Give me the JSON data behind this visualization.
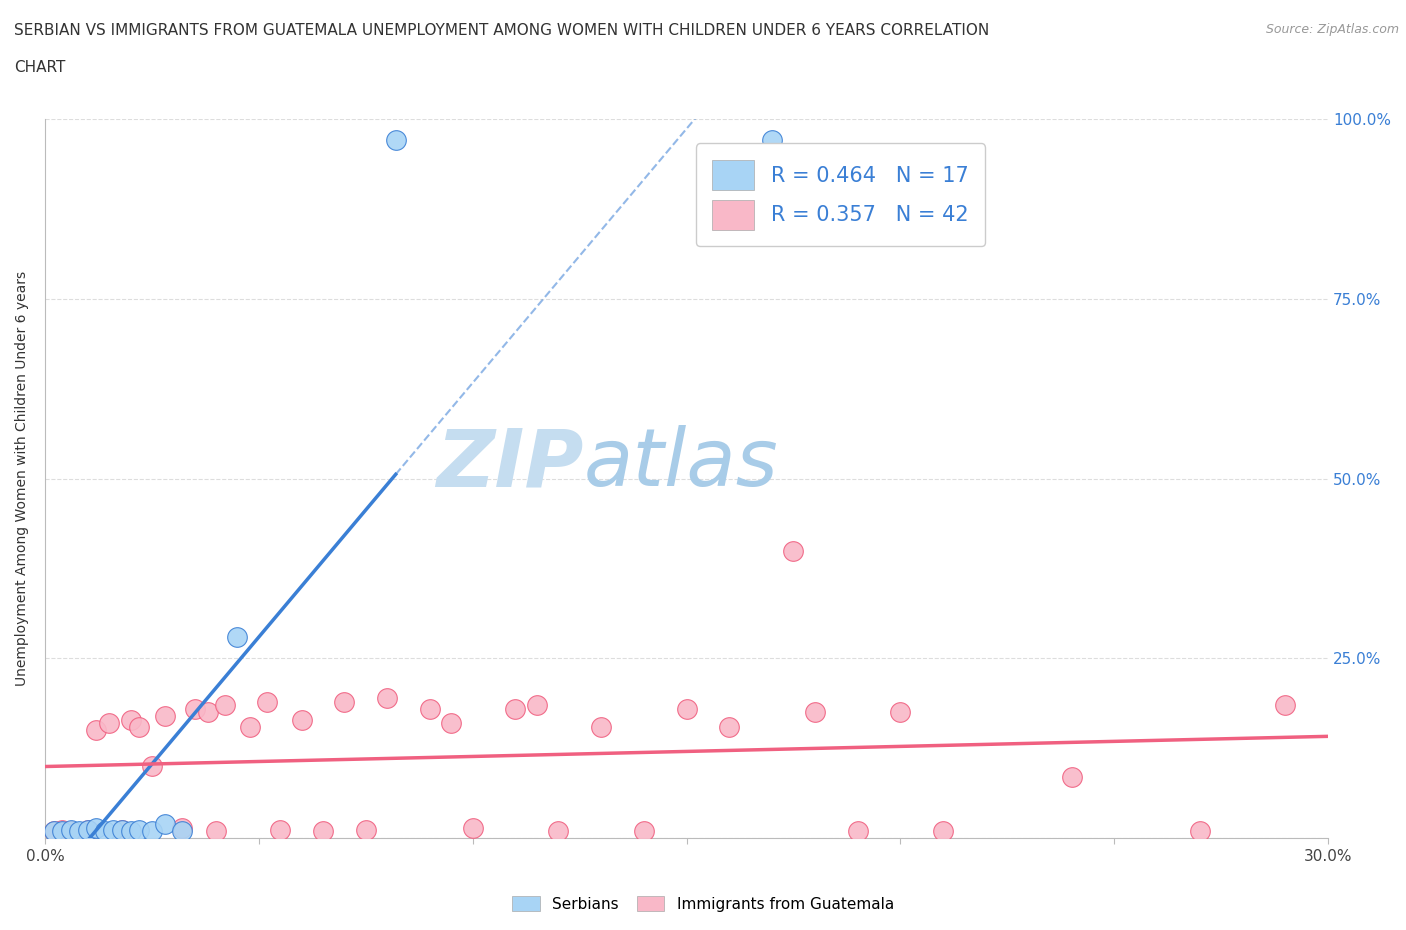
{
  "title_line1": "SERBIAN VS IMMIGRANTS FROM GUATEMALA UNEMPLOYMENT AMONG WOMEN WITH CHILDREN UNDER 6 YEARS CORRELATION",
  "title_line2": "CHART",
  "source": "Source: ZipAtlas.com",
  "ylabel": "Unemployment Among Women with Children Under 6 years",
  "xlim": [
    0.0,
    0.3
  ],
  "ylim": [
    0.0,
    1.0
  ],
  "xtick_positions": [
    0.0,
    0.05,
    0.1,
    0.15,
    0.2,
    0.25,
    0.3
  ],
  "xtick_labels": [
    "0.0%",
    "",
    "",
    "",
    "",
    "",
    "30.0%"
  ],
  "ytick_positions": [
    0.0,
    0.25,
    0.5,
    0.75,
    1.0
  ],
  "ytick_labels": [
    "",
    "25.0%",
    "50.0%",
    "75.0%",
    "100.0%"
  ],
  "serbian_color": "#a8d4f5",
  "guatemalan_color": "#f9b8c8",
  "serbian_line_color": "#3a7fd5",
  "guatemalan_line_color": "#f06080",
  "watermark_zip": "ZIP",
  "watermark_atlas": "atlas",
  "watermark_color_zip": "#c8dff0",
  "watermark_color_atlas": "#b0cce8",
  "legend_serbian_R": "0.464",
  "legend_serbian_N": "17",
  "legend_guatemalan_R": "0.357",
  "legend_guatemalan_N": "42",
  "serbian_x": [
    0.002,
    0.004,
    0.006,
    0.008,
    0.01,
    0.012,
    0.014,
    0.016,
    0.018,
    0.02,
    0.022,
    0.025,
    0.028,
    0.032,
    0.045,
    0.082,
    0.17
  ],
  "serbian_y": [
    0.01,
    0.01,
    0.012,
    0.01,
    0.012,
    0.015,
    0.01,
    0.012,
    0.012,
    0.01,
    0.012,
    0.01,
    0.02,
    0.01,
    0.28,
    0.97,
    0.97
  ],
  "guatemalan_x": [
    0.002,
    0.004,
    0.006,
    0.01,
    0.012,
    0.015,
    0.018,
    0.02,
    0.022,
    0.025,
    0.028,
    0.032,
    0.035,
    0.038,
    0.04,
    0.042,
    0.048,
    0.052,
    0.055,
    0.06,
    0.065,
    0.07,
    0.075,
    0.08,
    0.09,
    0.095,
    0.1,
    0.11,
    0.115,
    0.12,
    0.13,
    0.14,
    0.15,
    0.16,
    0.175,
    0.18,
    0.19,
    0.2,
    0.21,
    0.24,
    0.27,
    0.29
  ],
  "guatemalan_y": [
    0.01,
    0.012,
    0.01,
    0.012,
    0.15,
    0.16,
    0.012,
    0.165,
    0.155,
    0.1,
    0.17,
    0.015,
    0.18,
    0.175,
    0.01,
    0.185,
    0.155,
    0.19,
    0.012,
    0.165,
    0.01,
    0.19,
    0.012,
    0.195,
    0.18,
    0.16,
    0.015,
    0.18,
    0.185,
    0.01,
    0.155,
    0.01,
    0.18,
    0.155,
    0.4,
    0.175,
    0.01,
    0.175,
    0.01,
    0.085,
    0.01,
    0.185
  ],
  "background_color": "#ffffff",
  "grid_color": "#dddddd",
  "legend_text_color": "#3a7fd5",
  "legend_R_color": "#3a7fd5",
  "legend_N_color": "#3a7fd5"
}
